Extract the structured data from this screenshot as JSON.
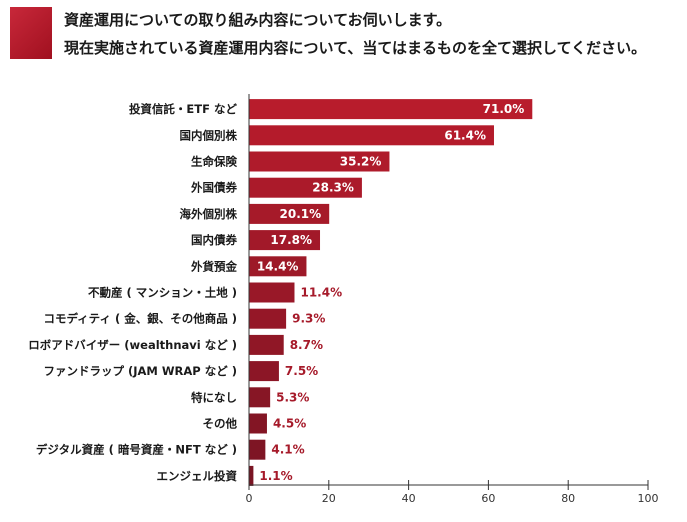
{
  "header": {
    "question_line1": "資産運用についての取り組み内容についてお伺いします。",
    "question_line2": "現在実施されている資産運用内容について、当てはまるものを全て選択してください。",
    "accent_color": "#b81c2c"
  },
  "chart_data": {
    "type": "bar",
    "orientation": "horizontal",
    "categories": [
      "投資信託・ETF など",
      "国内個別株",
      "生命保険",
      "外国債券",
      "海外個別株",
      "国内債券",
      "外貨預金",
      "不動産 ( マンション・土地 )",
      "コモディティ ( 金、銀、その他商品 )",
      "ロボアドバイザー (wealthnavi など )",
      "ファンドラップ (JAM WRAP など )",
      "特になし",
      "その他",
      "デジタル資産 ( 暗号資産・NFT など )",
      "エンジェル投資"
    ],
    "values": [
      71.0,
      61.4,
      35.2,
      28.3,
      20.1,
      17.8,
      14.4,
      11.4,
      9.3,
      8.7,
      7.5,
      5.3,
      4.5,
      4.1,
      1.1
    ],
    "value_labels": [
      "71.0%",
      "61.4%",
      "35.2%",
      "28.3%",
      "20.1%",
      "17.8%",
      "14.4%",
      "11.4%",
      "9.3%",
      "8.7%",
      "7.5%",
      "5.3%",
      "4.5%",
      "4.1%",
      "1.1%"
    ],
    "xlim": [
      0,
      100
    ],
    "xticks": [
      0,
      20,
      40,
      60,
      80,
      100
    ],
    "grid": false,
    "bar_color_top": "#b81c2c",
    "bar_color_bottom": "#7a1423",
    "label_inside_color": "#ffffff",
    "label_outside_color": "#a61a2a"
  }
}
